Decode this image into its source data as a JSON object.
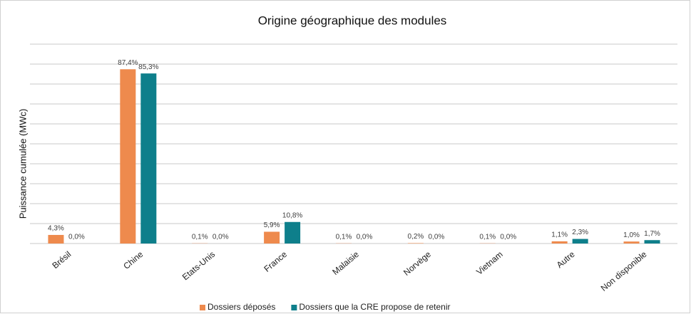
{
  "chart_data": {
    "type": "bar",
    "title": "Origine géographique des modules",
    "y_label": "Puissance cumulée (MWc)",
    "categories": [
      "Brésil",
      "Chine",
      "Etats-Unis",
      "France",
      "Malaisie",
      "Norvège",
      "Vietnam",
      "Autre",
      "Non disponible"
    ],
    "series": [
      {
        "name": "Dossiers déposés",
        "color": "#ee8a4d",
        "values": [
          4.3,
          87.4,
          0.1,
          5.9,
          0.1,
          0.2,
          0.1,
          1.1,
          1.0
        ],
        "value_labels": [
          "4,3%",
          "87,4%",
          "0,1%",
          "5,9%",
          "0,1%",
          "0,2%",
          "0,1%",
          "1,1%",
          "1,0%"
        ]
      },
      {
        "name": "Dossiers que la CRE propose de retenir",
        "color": "#0e7f8b",
        "values": [
          0.0,
          85.3,
          0.0,
          10.8,
          0.0,
          0.0,
          0.0,
          2.3,
          1.7
        ],
        "value_labels": [
          "0,0%",
          "85,3%",
          "0,0%",
          "10,8%",
          "0,0%",
          "0,0%",
          "0,0%",
          "2,3%",
          "1,7%"
        ]
      }
    ],
    "ylim": [
      0,
      100
    ],
    "yticks": [
      0,
      10,
      20,
      30,
      40,
      50,
      60,
      70,
      80,
      90,
      100
    ],
    "grid": true,
    "legend": "bottom"
  }
}
